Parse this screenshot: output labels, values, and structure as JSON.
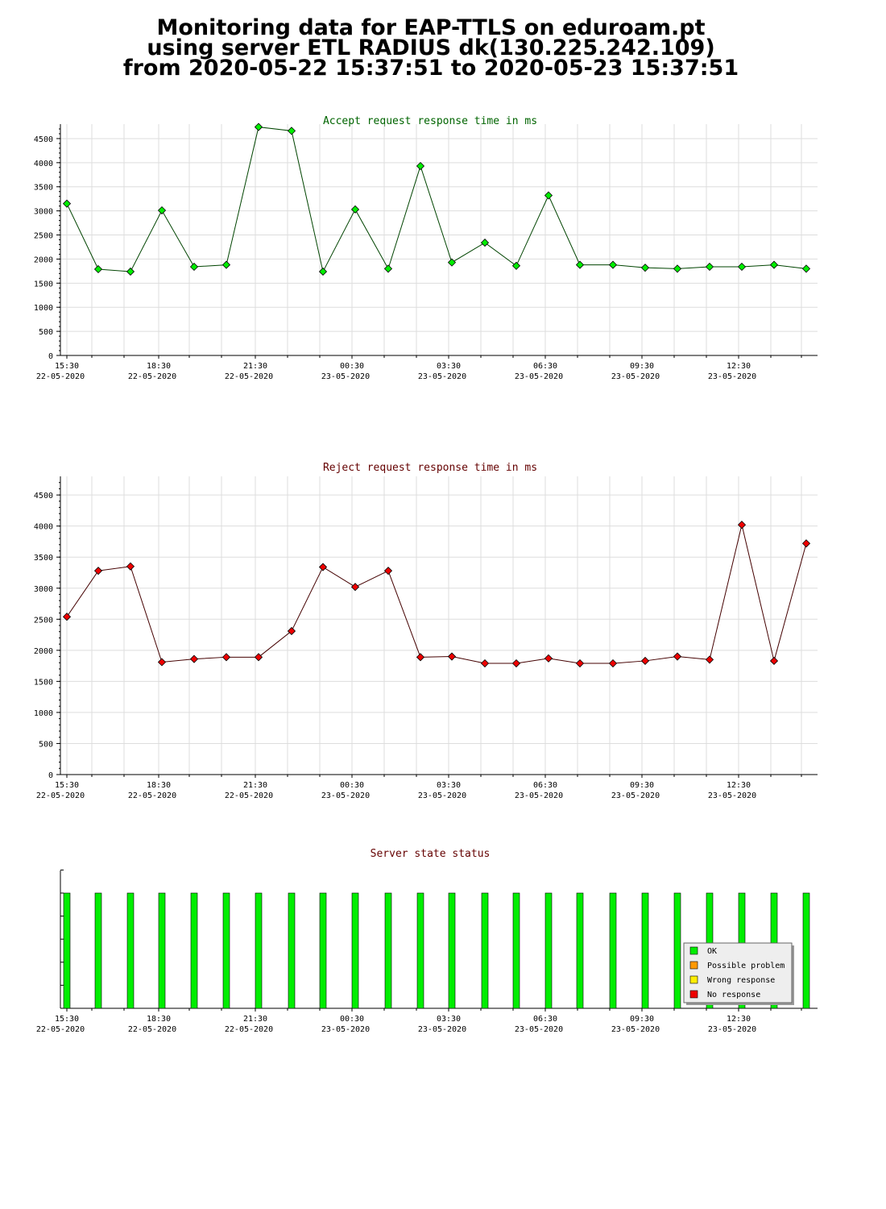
{
  "header": {
    "line1": "Monitoring data for EAP-TTLS on eduroam.pt",
    "line2": "using server ETL RADIUS dk(130.225.242.109)",
    "line3": "from 2020-05-22 15:37:51 to 2020-05-23 15:37:51"
  },
  "colors": {
    "accept_title": "#006400",
    "reject_title": "#640000",
    "status_title": "#640000",
    "accept_marker": "#00ee00",
    "reject_marker": "#ee0000",
    "accept_line": "#004400",
    "reject_line": "#440000",
    "grid": "#dddddd"
  },
  "chart_data": [
    {
      "type": "line",
      "title": "Accept request response time in ms",
      "x_tick_labels": [
        {
          "time": "15:30",
          "date": "22-05-2020"
        },
        {
          "time": "18:30",
          "date": "22-05-2020"
        },
        {
          "time": "21:30",
          "date": "22-05-2020"
        },
        {
          "time": "00:30",
          "date": "23-05-2020"
        },
        {
          "time": "03:30",
          "date": "23-05-2020"
        },
        {
          "time": "06:30",
          "date": "23-05-2020"
        },
        {
          "time": "09:30",
          "date": "23-05-2020"
        },
        {
          "time": "12:30",
          "date": "23-05-2020"
        }
      ],
      "y_ticks": [
        0,
        500,
        1000,
        1500,
        2000,
        2500,
        3000,
        3500,
        4000,
        4500
      ],
      "ylim": [
        0,
        4800
      ],
      "grid": true,
      "series": [
        {
          "values": [
            3150,
            1790,
            1740,
            3010,
            1840,
            1880,
            4740,
            4660,
            1740,
            3030,
            1800,
            3930,
            1930,
            2340,
            1860,
            3320,
            1880,
            1880,
            1820,
            1800,
            1840,
            1840,
            1880,
            1800
          ]
        }
      ]
    },
    {
      "type": "line",
      "title": "Reject request response time in ms",
      "x_tick_labels": [
        {
          "time": "15:30",
          "date": "22-05-2020"
        },
        {
          "time": "18:30",
          "date": "22-05-2020"
        },
        {
          "time": "21:30",
          "date": "22-05-2020"
        },
        {
          "time": "00:30",
          "date": "23-05-2020"
        },
        {
          "time": "03:30",
          "date": "23-05-2020"
        },
        {
          "time": "06:30",
          "date": "23-05-2020"
        },
        {
          "time": "09:30",
          "date": "23-05-2020"
        },
        {
          "time": "12:30",
          "date": "23-05-2020"
        }
      ],
      "y_ticks": [
        0,
        500,
        1000,
        1500,
        2000,
        2500,
        3000,
        3500,
        4000,
        4500
      ],
      "ylim": [
        0,
        4800
      ],
      "grid": true,
      "series": [
        {
          "values": [
            2540,
            3280,
            3350,
            1810,
            1860,
            1890,
            1890,
            2310,
            3340,
            3020,
            3280,
            1890,
            1900,
            1790,
            1790,
            1870,
            1790,
            1790,
            1830,
            1900,
            1850,
            4020,
            1830,
            3720
          ]
        }
      ]
    },
    {
      "type": "bar",
      "title": "Server state status",
      "x_tick_labels": [
        {
          "time": "15:30",
          "date": "22-05-2020"
        },
        {
          "time": "18:30",
          "date": "22-05-2020"
        },
        {
          "time": "21:30",
          "date": "22-05-2020"
        },
        {
          "time": "00:30",
          "date": "23-05-2020"
        },
        {
          "time": "03:30",
          "date": "23-05-2020"
        },
        {
          "time": "06:30",
          "date": "23-05-2020"
        },
        {
          "time": "09:30",
          "date": "23-05-2020"
        },
        {
          "time": "12:30",
          "date": "23-05-2020"
        }
      ],
      "states": [
        "OK",
        "OK",
        "OK",
        "OK",
        "OK",
        "OK",
        "OK",
        "OK",
        "OK",
        "OK",
        "OK",
        "OK",
        "OK",
        "OK",
        "OK",
        "OK",
        "OK",
        "OK",
        "OK",
        "OK",
        "OK",
        "OK",
        "OK",
        "OK"
      ],
      "legend": [
        {
          "label": "OK",
          "color": "#00ee00"
        },
        {
          "label": "Possible problem",
          "color": "#ff9900"
        },
        {
          "label": "Wrong response",
          "color": "#ffee00"
        },
        {
          "label": "No response",
          "color": "#ee0000"
        }
      ],
      "legend_position": "bottom-right"
    }
  ]
}
